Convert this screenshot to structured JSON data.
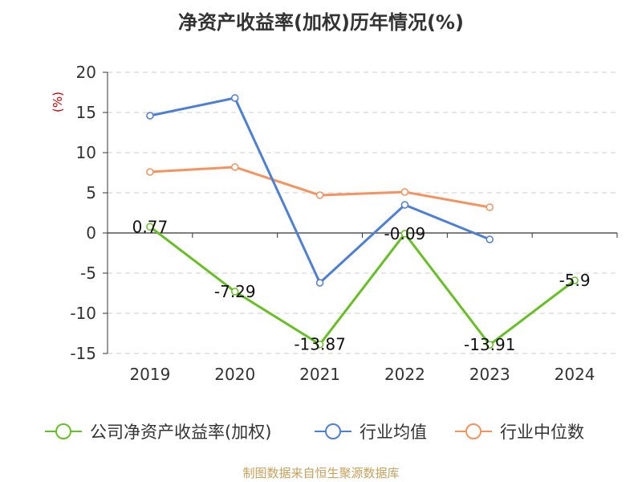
{
  "colors": {
    "company": "#66c023",
    "industry_avg": "#4d7fd6",
    "industry_median": "#f5925e",
    "grid": "#cccccc",
    "axis": "#333333",
    "ylabel": "#cc0000",
    "source": "#c8a05a"
  },
  "source_text": "制图数据来自恒生聚源数据库",
  "chart_data": {
    "type": "line",
    "title": "净资产收益率(加权)历年情况(%)",
    "ylabel": "(%)",
    "xlabel": "",
    "ylim": [
      -15,
      20
    ],
    "yticks": [
      20,
      15,
      10,
      5,
      0,
      -5,
      -10,
      -15
    ],
    "categories": [
      "2019",
      "2020",
      "2021",
      "2022",
      "2023",
      "2024"
    ],
    "grid": true,
    "legend_position": "bottom",
    "series": [
      {
        "name": "公司净资产收益率(加权)",
        "key": "company",
        "values": [
          0.77,
          -7.29,
          -13.87,
          -0.09,
          -13.91,
          -5.9
        ],
        "labels": [
          "0.77",
          "-7.29",
          "-13.87",
          "-0.09",
          "-13.91",
          "-5.9"
        ]
      },
      {
        "name": "行业均值",
        "key": "industry_avg",
        "values": [
          14.6,
          16.8,
          -6.2,
          3.5,
          -0.8,
          null
        ]
      },
      {
        "name": "行业中位数",
        "key": "industry_median",
        "values": [
          7.6,
          8.2,
          4.7,
          5.1,
          3.2,
          null
        ]
      }
    ]
  }
}
